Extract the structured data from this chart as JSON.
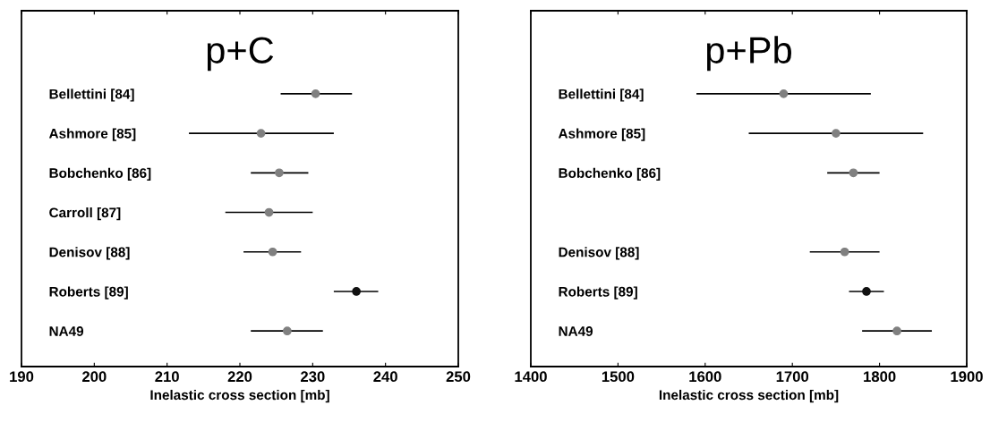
{
  "chart_data": [
    {
      "type": "scatter",
      "orientation": "horizontal",
      "title": "p+C",
      "xlabel": "Inelastic cross section [mb]",
      "marker": "circle",
      "grid": false,
      "legend": false,
      "categories": [
        "Bellettini [84]",
        "Ashmore [85]",
        "Bobchenko [86]",
        "Carroll [87]",
        "Denisov [88]",
        "Roberts [89]",
        "NA49"
      ],
      "values": [
        230.4,
        222.9,
        225.4,
        224.0,
        224.5,
        236.0,
        226.5
      ],
      "errors": [
        [
          225.6,
          235.4
        ],
        [
          213.0,
          232.9
        ],
        [
          221.5,
          229.4
        ],
        [
          218.0,
          230.0
        ],
        [
          220.5,
          228.4
        ],
        [
          232.9,
          239.0
        ],
        [
          221.5,
          231.4
        ]
      ],
      "colors": [
        "#808080",
        "#808080",
        "#808080",
        "#808080",
        "#808080",
        "#111111",
        "#808080"
      ],
      "xlim": [
        190,
        250
      ],
      "xticks": [
        190,
        200,
        210,
        220,
        230,
        240,
        250
      ]
    },
    {
      "type": "scatter",
      "orientation": "horizontal",
      "title": "p+Pb",
      "xlabel": "Inelastic cross section [mb]",
      "marker": "circle",
      "grid": false,
      "legend": false,
      "categories": [
        "Bellettini [84]",
        "Ashmore [85]",
        "Bobchenko [86]",
        null,
        "Denisov [88]",
        "Roberts [89]",
        "NA49"
      ],
      "values": [
        1690,
        1750,
        1770,
        null,
        1760,
        1785,
        1820
      ],
      "errors": [
        [
          1590,
          1790
        ],
        [
          1650,
          1850
        ],
        [
          1740,
          1800
        ],
        null,
        [
          1720,
          1800
        ],
        [
          1765,
          1805
        ],
        [
          1780,
          1860
        ]
      ],
      "colors": [
        "#808080",
        "#808080",
        "#808080",
        null,
        "#808080",
        "#111111",
        "#808080"
      ],
      "xlim": [
        1400,
        1900
      ],
      "xticks": [
        1400,
        1500,
        1600,
        1700,
        1800,
        1900
      ]
    }
  ]
}
